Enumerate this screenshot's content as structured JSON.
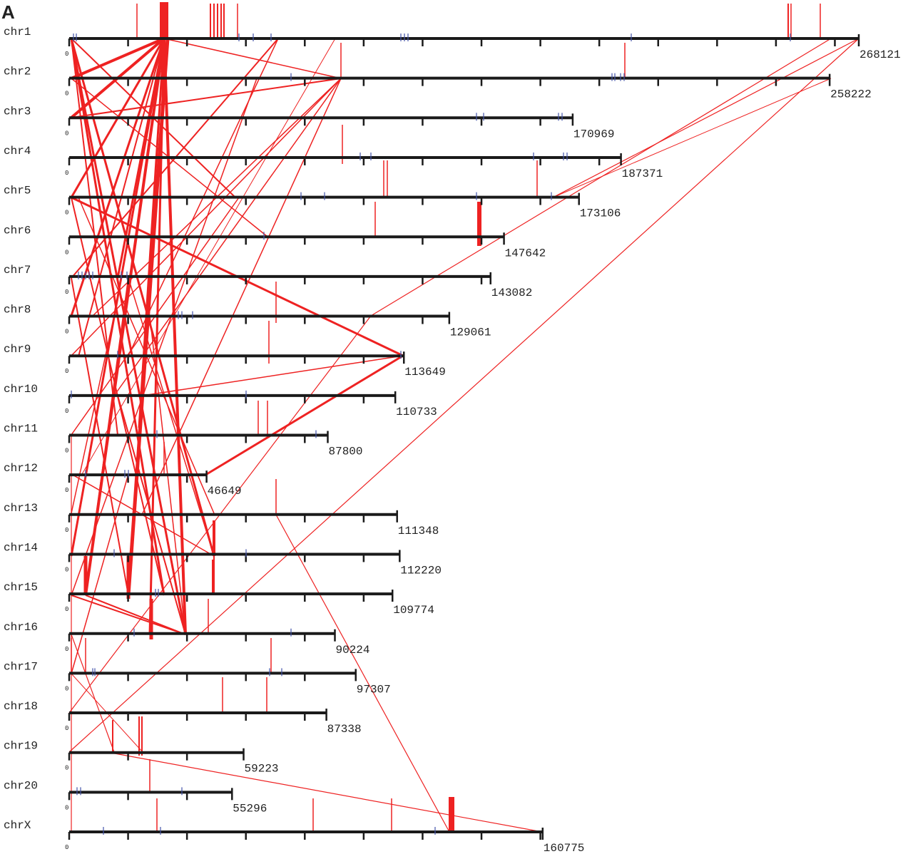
{
  "panel": "A",
  "chromosomes": [
    {
      "name": "chr1",
      "length": 268121
    },
    {
      "name": "chr2",
      "length": 258222
    },
    {
      "name": "chr3",
      "length": 170969
    },
    {
      "name": "chr4",
      "length": 187371
    },
    {
      "name": "chr5",
      "length": 173106
    },
    {
      "name": "chr6",
      "length": 147642
    },
    {
      "name": "chr7",
      "length": 143082
    },
    {
      "name": "chr8",
      "length": 129061
    },
    {
      "name": "chr9",
      "length": 113649
    },
    {
      "name": "chr10",
      "length": 110733
    },
    {
      "name": "chr11",
      "length": 87800
    },
    {
      "name": "chr12",
      "length": 46649
    },
    {
      "name": "chr13",
      "length": 111348
    },
    {
      "name": "chr14",
      "length": 112220
    },
    {
      "name": "chr15",
      "length": 109774
    },
    {
      "name": "chr16",
      "length": 90224
    },
    {
      "name": "chr17",
      "length": 97307
    },
    {
      "name": "chr18",
      "length": 87338
    },
    {
      "name": "chr19",
      "length": 59223
    },
    {
      "name": "chr20",
      "length": 55296
    },
    {
      "name": "chrX",
      "length": 160775
    }
  ],
  "origin": "0"
}
